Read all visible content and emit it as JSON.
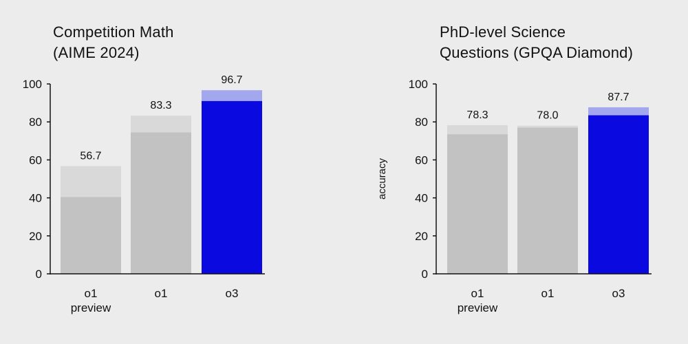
{
  "colors": {
    "background": "#ececec",
    "base_gray": "#c2c2c2",
    "range_gray": "#d9d9d9",
    "highlight_blue": "#0a0ae0",
    "highlight_blue_light": "#a3a8ee",
    "axis": "#111111"
  },
  "chart_data": [
    {
      "type": "bar",
      "title": "Competition Math (AIME 2024)",
      "title_lines": [
        "Competition Math",
        "(AIME 2024)"
      ],
      "ylabel": "",
      "categories": [
        "o1\npreview",
        "o1",
        "o3"
      ],
      "values": [
        56.7,
        83.3,
        96.7
      ],
      "base_values": [
        40.5,
        74.5,
        91
      ],
      "highlight": [
        false,
        false,
        true
      ],
      "ylim": [
        0,
        100
      ],
      "yticks": [
        0,
        20,
        40,
        60,
        80,
        100
      ],
      "grid": false
    },
    {
      "type": "bar",
      "title": "PhD-level Science Questions (GPQA Diamond)",
      "title_lines": [
        "PhD-level Science",
        "Questions (GPQA Diamond)"
      ],
      "ylabel": "accuracy",
      "categories": [
        "o1\npreview",
        "o1",
        "o3"
      ],
      "values": [
        78.3,
        78.0,
        87.7
      ],
      "base_values": [
        73.5,
        77,
        83.5
      ],
      "highlight": [
        false,
        false,
        true
      ],
      "ylim": [
        0,
        100
      ],
      "yticks": [
        0,
        20,
        40,
        60,
        80,
        100
      ],
      "grid": false
    }
  ]
}
